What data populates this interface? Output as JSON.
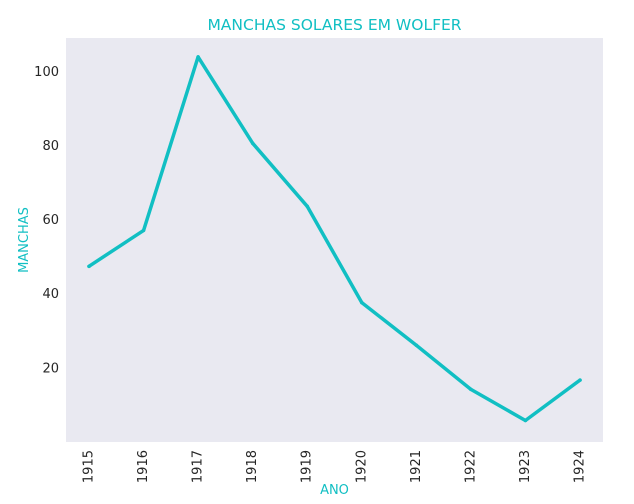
{
  "chart_data": {
    "type": "line",
    "title": "MANCHAS SOLARES EM WOLFER",
    "xlabel": "ANO",
    "ylabel": "MANCHAS",
    "x": [
      "1915",
      "1916",
      "1917",
      "1918",
      "1919",
      "1920",
      "1921",
      "1922",
      "1923",
      "1924"
    ],
    "series": [
      {
        "values": [
          47.4,
          57.1,
          103.9,
          80.6,
          63.6,
          37.6,
          26.1,
          14.2,
          5.8,
          16.7
        ],
        "color": "#11bfc3"
      }
    ],
    "ylim": [
      0,
      109
    ],
    "yticks": [
      20,
      40,
      60,
      80,
      100
    ],
    "grid": false,
    "legend": "none",
    "colors": {
      "plot_background": "#e9e9f1",
      "title": "#11bfc3",
      "axis_label": "#11bfc3",
      "tick_label": "#262626"
    }
  }
}
